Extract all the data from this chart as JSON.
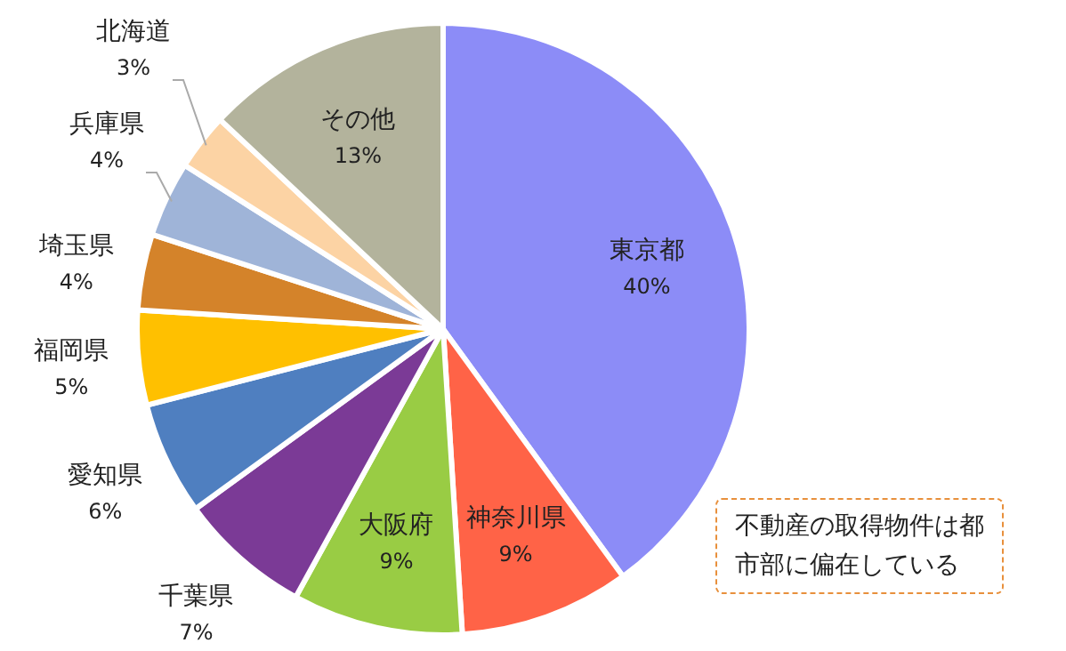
{
  "chart_data": {
    "type": "pie",
    "categories": [
      "東京都",
      "神奈川県",
      "大阪府",
      "千葉県",
      "愛知県",
      "福岡県",
      "埼玉県",
      "兵庫県",
      "北海道",
      "その他"
    ],
    "values": [
      40,
      9,
      9,
      7,
      6,
      5,
      4,
      4,
      3,
      13
    ],
    "value_labels": [
      "40%",
      "9%",
      "9%",
      "7%",
      "6%",
      "5%",
      "4%",
      "4%",
      "3%",
      "13%"
    ],
    "colors": [
      "#8c8cf7",
      "#ff6347",
      "#99cc44",
      "#7b3a96",
      "#4f7fc0",
      "#ffc000",
      "#d4832a",
      "#9fb4d8",
      "#fcd3a4",
      "#b3b39c"
    ],
    "annotations": [
      "不動産の取得物件は都市部に偏在している"
    ]
  }
}
